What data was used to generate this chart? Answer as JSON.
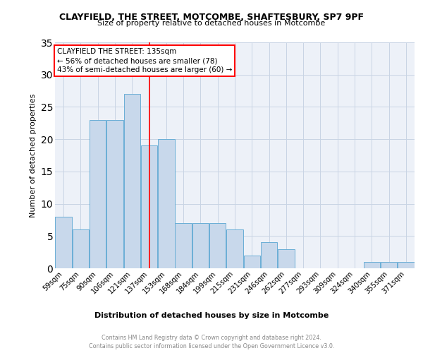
{
  "title": "CLAYFIELD, THE STREET, MOTCOMBE, SHAFTESBURY, SP7 9PF",
  "subtitle": "Size of property relative to detached houses in Motcombe",
  "xlabel": "Distribution of detached houses by size in Motcombe",
  "ylabel": "Number of detached properties",
  "bin_edges": [
    "59sqm",
    "75sqm",
    "90sqm",
    "106sqm",
    "121sqm",
    "137sqm",
    "153sqm",
    "168sqm",
    "184sqm",
    "199sqm",
    "215sqm",
    "231sqm",
    "246sqm",
    "262sqm",
    "277sqm",
    "293sqm",
    "309sqm",
    "324sqm",
    "340sqm",
    "355sqm",
    "371sqm"
  ],
  "values": [
    8,
    6,
    23,
    23,
    27,
    19,
    20,
    7,
    7,
    7,
    6,
    2,
    4,
    3,
    0,
    0,
    0,
    0,
    1,
    1,
    1
  ],
  "bar_color": "#c8d8eb",
  "bar_edge_color": "#6aaed6",
  "grid_color": "#c8d4e4",
  "background_color": "#edf1f8",
  "annotation_text_line1": "CLAYFIELD THE STREET: 135sqm",
  "annotation_text_line2": "← 56% of detached houses are smaller (78)",
  "annotation_text_line3": "43% of semi-detached houses are larger (60) →",
  "redline_index": 5,
  "ylim": [
    0,
    35
  ],
  "yticks": [
    0,
    5,
    10,
    15,
    20,
    25,
    30,
    35
  ],
  "footer_text": "Contains HM Land Registry data © Crown copyright and database right 2024.\nContains public sector information licensed under the Open Government Licence v3.0.",
  "annotation_box_facecolor": "white",
  "annotation_box_edgecolor": "red",
  "redline_color": "red"
}
